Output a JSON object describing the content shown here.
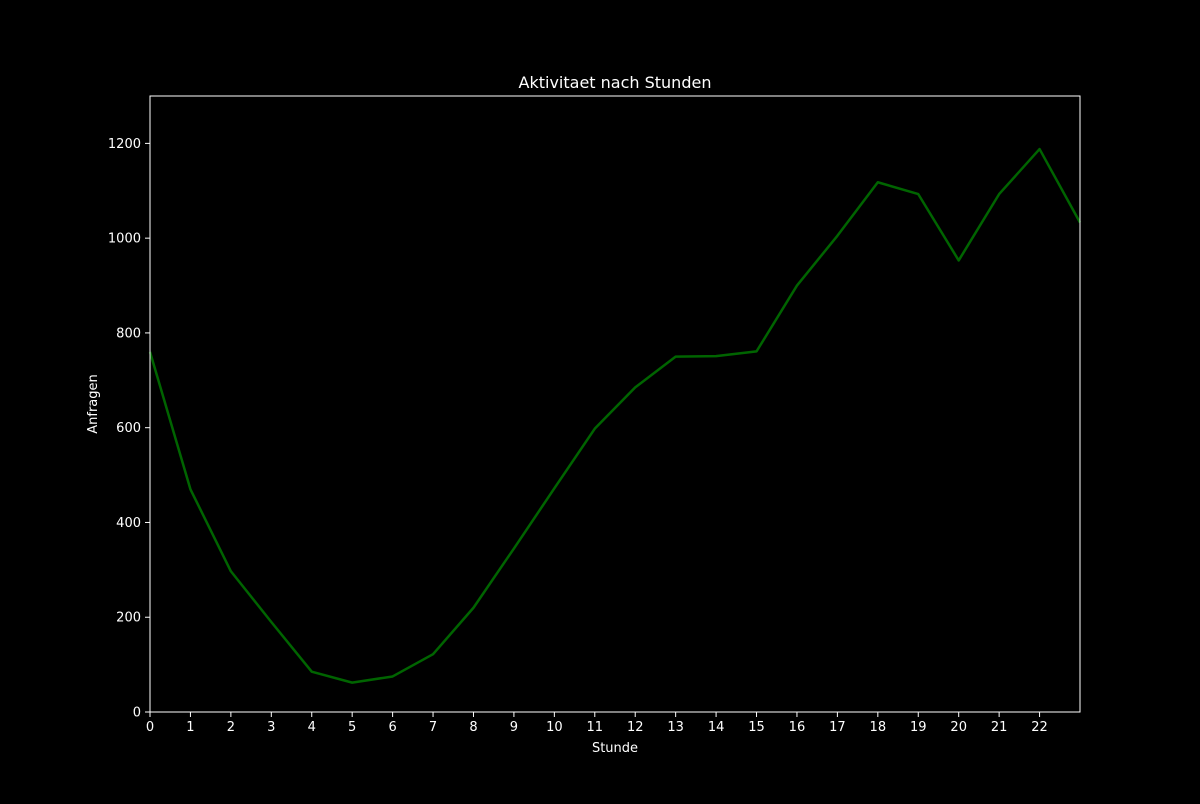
{
  "chart_data": {
    "type": "line",
    "title": "Aktivitaet nach Stunden",
    "xlabel": "Stunde",
    "ylabel": "Anfragen",
    "x": [
      0,
      1,
      2,
      3,
      4,
      5,
      6,
      7,
      8,
      9,
      10,
      11,
      12,
      13,
      14,
      15,
      16,
      17,
      18,
      19,
      20,
      21,
      22,
      23
    ],
    "series": [
      {
        "values": [
          760,
          470,
          297,
          190,
          85,
          62,
          75,
          122,
          220,
          345,
          472,
          598,
          685,
          750,
          751,
          761,
          900,
          1005,
          1118,
          1093,
          953,
          1093,
          1188,
          1033
        ]
      }
    ],
    "xticks": [
      0,
      1,
      2,
      3,
      4,
      5,
      6,
      7,
      8,
      9,
      10,
      11,
      12,
      13,
      14,
      15,
      16,
      17,
      18,
      19,
      20,
      21,
      22
    ],
    "yticks": [
      0,
      200,
      400,
      600,
      800,
      1000,
      1200
    ],
    "xlim": [
      0,
      23
    ],
    "ylim": [
      0,
      1300
    ],
    "grid": false,
    "colors": {
      "background": "#000000",
      "line": "#006400",
      "axes": "#ffffff",
      "text": "#ffffff"
    }
  }
}
